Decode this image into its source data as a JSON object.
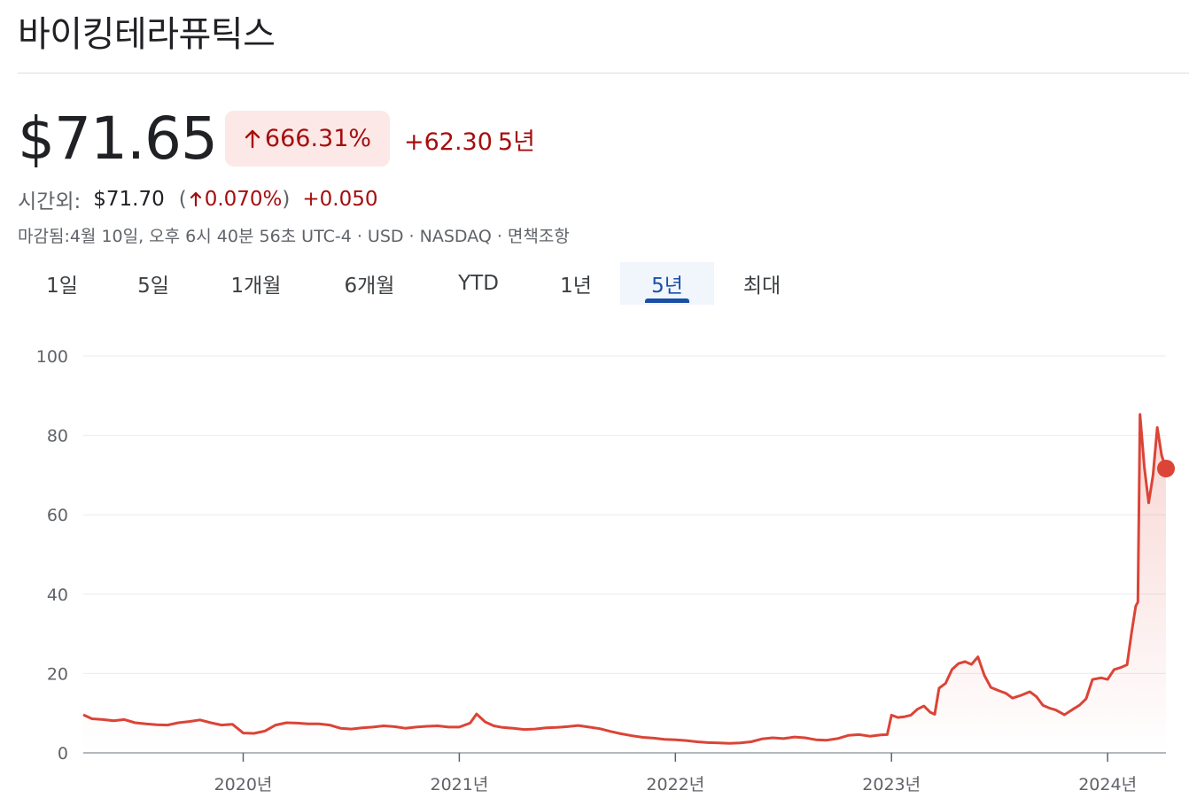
{
  "header": {
    "title": "바이킹테라퓨틱스"
  },
  "quote": {
    "price": "$71.65",
    "change_pct": "666.31%",
    "change_abs": "+62.30",
    "period": "5년",
    "up_arrow_icon": "arrow-up-icon"
  },
  "after_hours": {
    "label": "시간외:",
    "price": "$71.70",
    "paren_open": "(",
    "pct": "0.070%",
    "paren_close": ")",
    "delta": "+0.050"
  },
  "meta": "마감됨:4월 10일, 오후 6시 40분 56초 UTC-4 · USD · NASDAQ · 면책조항",
  "tabs": [
    {
      "label": "1일"
    },
    {
      "label": "5일"
    },
    {
      "label": "1개월"
    },
    {
      "label": "6개월"
    },
    {
      "label": "YTD"
    },
    {
      "label": "1년"
    },
    {
      "label": "5년",
      "active": true
    },
    {
      "label": "최대"
    }
  ],
  "colors": {
    "line": "#db4437",
    "gridline": "#ebebeb",
    "active_tab": "#1a4fa8",
    "negative_badge_bg": "#fce8e6",
    "change_text": "#a50e0e"
  },
  "chart_data": {
    "type": "area",
    "grid": true,
    "ylim": [
      0,
      100
    ],
    "yticks": [
      "0",
      "20",
      "40",
      "60",
      "80",
      "100"
    ],
    "xticks": [
      "2020년",
      "2021년",
      "2022년",
      "2023년",
      "2024년"
    ],
    "x_range": [
      2019.26,
      2024.27
    ],
    "series": [
      {
        "x": [
          2019.26,
          2019.3,
          2019.35,
          2019.4,
          2019.45,
          2019.5,
          2019.55,
          2019.6,
          2019.65,
          2019.7,
          2019.75,
          2019.8,
          2019.85,
          2019.9,
          2019.95,
          2020.0,
          2020.05,
          2020.1,
          2020.15,
          2020.2,
          2020.25,
          2020.3,
          2020.35,
          2020.4,
          2020.45,
          2020.5,
          2020.55,
          2020.6,
          2020.65,
          2020.7,
          2020.75,
          2020.8,
          2020.85,
          2020.9,
          2020.95,
          2021.0,
          2021.05,
          2021.08,
          2021.12,
          2021.16,
          2021.2,
          2021.25,
          2021.3,
          2021.35,
          2021.4,
          2021.45,
          2021.5,
          2021.55,
          2021.6,
          2021.65,
          2021.7,
          2021.75,
          2021.8,
          2021.85,
          2021.9,
          2021.95,
          2022.0,
          2022.05,
          2022.1,
          2022.15,
          2022.2,
          2022.25,
          2022.3,
          2022.35,
          2022.4,
          2022.45,
          2022.5,
          2022.55,
          2022.6,
          2022.65,
          2022.7,
          2022.75,
          2022.8,
          2022.85,
          2022.9,
          2022.95,
          2022.98,
          2023.0,
          2023.03,
          2023.06,
          2023.09,
          2023.12,
          2023.15,
          2023.18,
          2023.2,
          2023.22,
          2023.25,
          2023.28,
          2023.31,
          2023.34,
          2023.37,
          2023.4,
          2023.43,
          2023.46,
          2023.5,
          2023.53,
          2023.56,
          2023.6,
          2023.64,
          2023.67,
          2023.7,
          2023.73,
          2023.76,
          2023.8,
          2023.84,
          2023.87,
          2023.9,
          2023.93,
          2023.97,
          2024.0,
          2024.03,
          2024.06,
          2024.09,
          2024.11,
          2024.13,
          2024.14,
          2024.15,
          2024.17,
          2024.19,
          2024.21,
          2024.23,
          2024.25,
          2024.27
        ],
        "y": [
          9.6,
          8.6,
          8.4,
          8.1,
          8.4,
          7.6,
          7.3,
          7.1,
          7.0,
          7.6,
          7.9,
          8.3,
          7.6,
          7.0,
          7.2,
          5.0,
          4.9,
          5.5,
          7.0,
          7.6,
          7.5,
          7.3,
          7.3,
          7.0,
          6.2,
          6.0,
          6.3,
          6.5,
          6.8,
          6.6,
          6.2,
          6.5,
          6.7,
          6.8,
          6.5,
          6.5,
          7.5,
          9.8,
          7.8,
          6.8,
          6.4,
          6.2,
          5.9,
          6.0,
          6.3,
          6.4,
          6.6,
          6.9,
          6.5,
          6.1,
          5.4,
          4.8,
          4.3,
          3.9,
          3.7,
          3.4,
          3.3,
          3.1,
          2.8,
          2.6,
          2.5,
          2.4,
          2.5,
          2.8,
          3.5,
          3.8,
          3.6,
          4.0,
          3.8,
          3.3,
          3.2,
          3.6,
          4.4,
          4.6,
          4.2,
          4.5,
          4.6,
          9.5,
          8.9,
          9.1,
          9.5,
          11.0,
          11.8,
          10.2,
          9.7,
          16.3,
          17.5,
          21.0,
          22.5,
          23.0,
          22.3,
          24.2,
          19.5,
          16.5,
          15.6,
          15.0,
          13.8,
          14.5,
          15.4,
          14.2,
          12.0,
          11.3,
          10.8,
          9.6,
          11.0,
          12.0,
          13.6,
          18.5,
          18.9,
          18.5,
          21.0,
          21.5,
          22.2,
          30.0,
          37.0,
          38.0,
          85.3,
          72.0,
          63.0,
          70.0,
          82.0,
          75.0,
          71.65
        ]
      }
    ]
  }
}
